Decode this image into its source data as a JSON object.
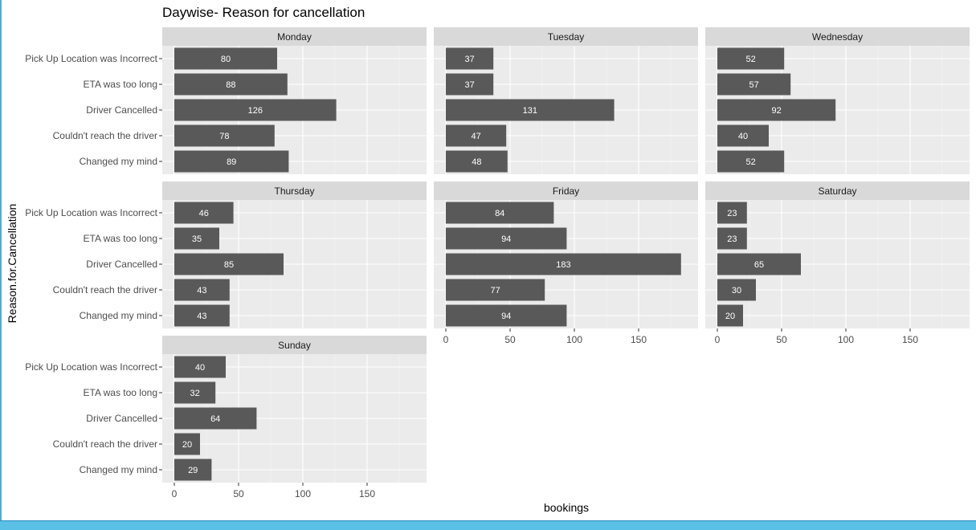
{
  "chart_data": {
    "type": "bar",
    "orientation": "horizontal",
    "facet_layout": "wrap 3 columns",
    "title": "Daywise- Reason for cancellation",
    "xlabel": "bookings",
    "ylabel": "Reason.for.Cancellation",
    "categories": [
      "Pick Up Location was Incorrect",
      "ETA was too long",
      "Driver Cancelled",
      "Couldn't reach the driver",
      "Changed my mind"
    ],
    "xlim": [
      0,
      190
    ],
    "xticks": [
      0,
      50,
      100,
      150
    ],
    "grid": true,
    "panels": [
      {
        "name": "Monday",
        "values": [
          80,
          88,
          126,
          78,
          89
        ]
      },
      {
        "name": "Tuesday",
        "values": [
          37,
          37,
          131,
          47,
          48
        ]
      },
      {
        "name": "Wednesday",
        "values": [
          52,
          57,
          92,
          40,
          52
        ]
      },
      {
        "name": "Thursday",
        "values": [
          46,
          35,
          85,
          43,
          43
        ]
      },
      {
        "name": "Friday",
        "values": [
          84,
          94,
          183,
          77,
          94
        ]
      },
      {
        "name": "Saturday",
        "values": [
          23,
          23,
          65,
          30,
          20
        ]
      },
      {
        "name": "Sunday",
        "values": [
          40,
          32,
          64,
          20,
          29
        ]
      }
    ]
  }
}
